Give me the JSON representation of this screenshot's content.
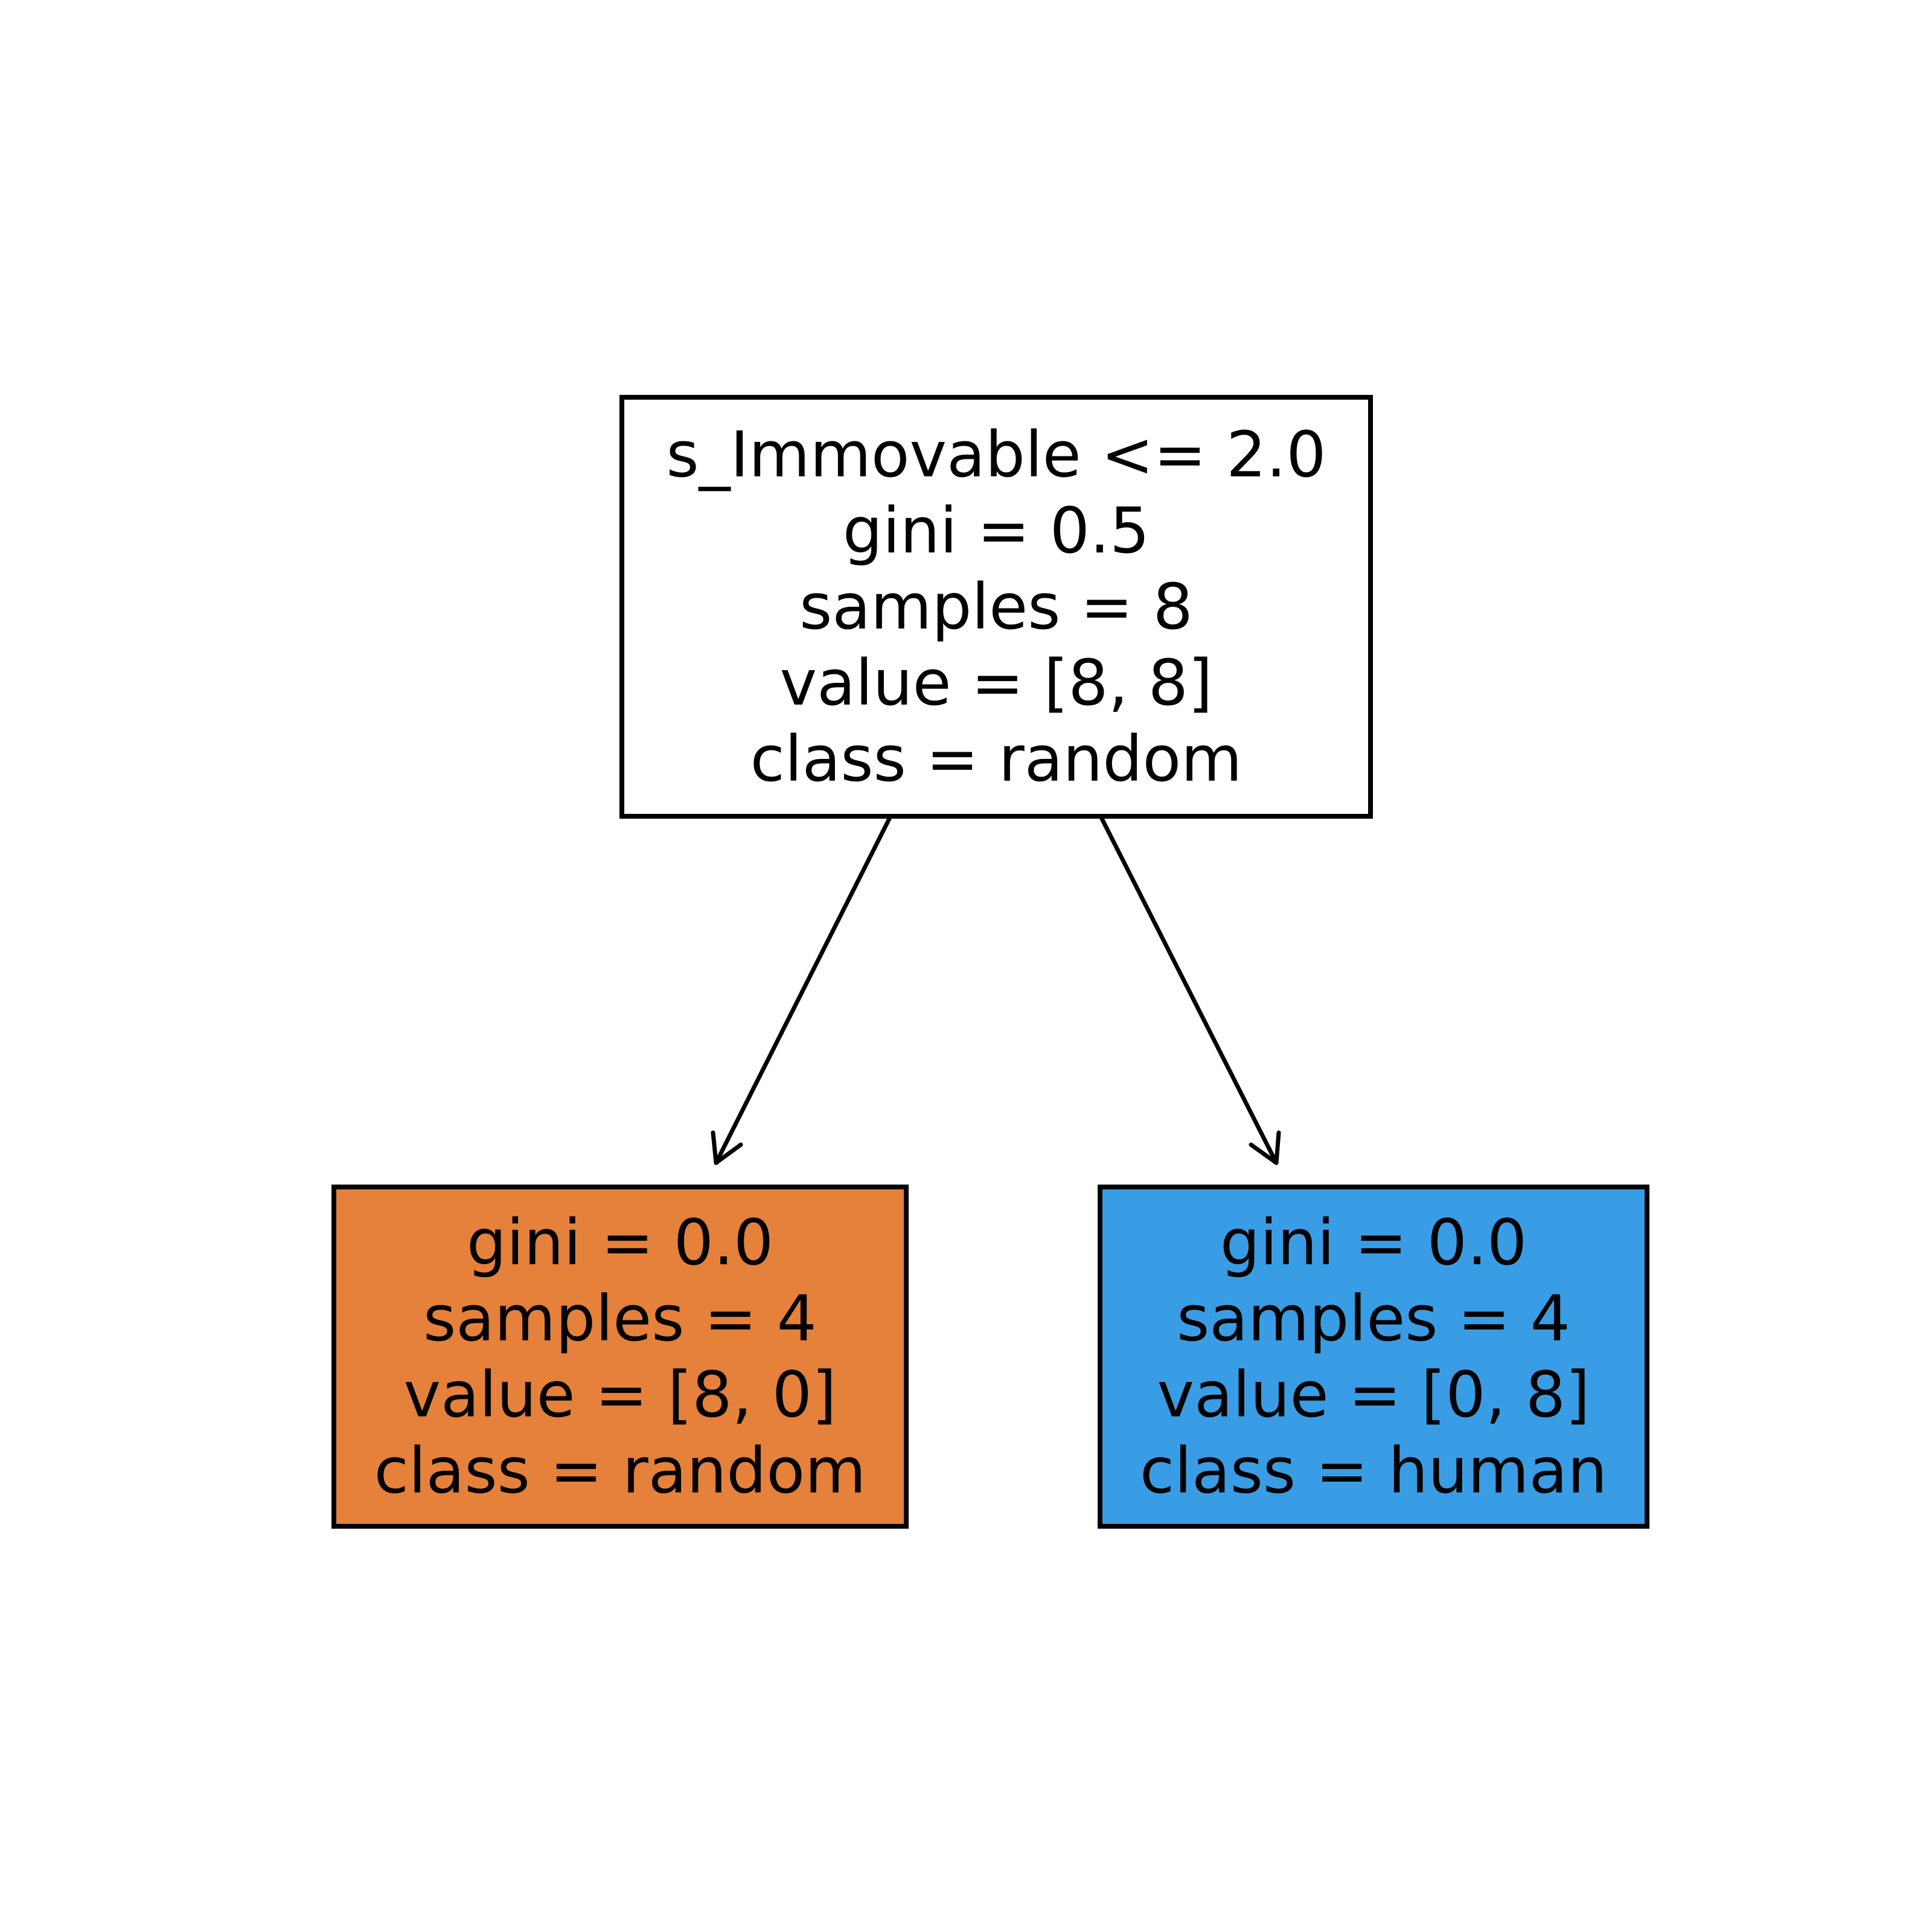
{
  "tree": {
    "root": {
      "lines": [
        "s_Immovable <= 2.0",
        "gini = 0.5",
        "samples = 8",
        "value = [8, 8]",
        "class = random"
      ],
      "fill_color": "#ffffff"
    },
    "left": {
      "lines": [
        "gini = 0.0",
        "samples = 4",
        "value = [8, 0]",
        "class = random"
      ],
      "fill_color": "#e5813a"
    },
    "right": {
      "lines": [
        "gini = 0.0",
        "samples = 4",
        "value = [0, 8]",
        "class = human"
      ],
      "fill_color": "#399de5"
    },
    "edges": [
      {
        "from": "root",
        "to": "left"
      },
      {
        "from": "root",
        "to": "right"
      }
    ]
  }
}
